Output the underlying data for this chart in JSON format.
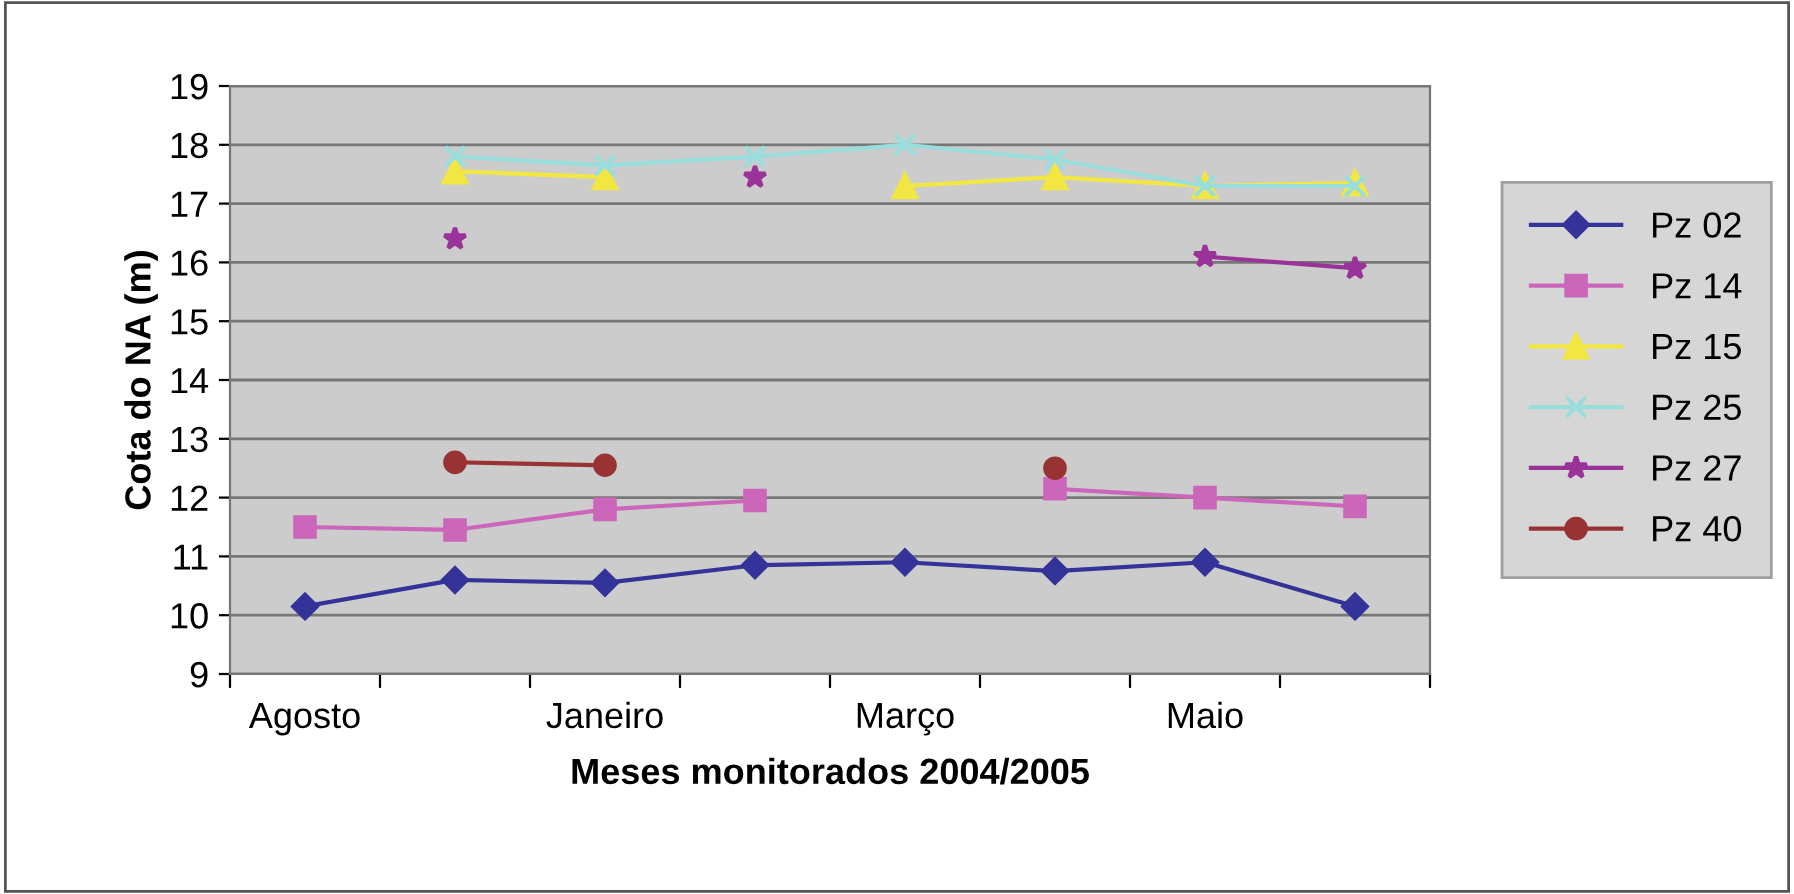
{
  "chart_data": {
    "type": "line",
    "xlabel": "Meses monitorados 2004/2005",
    "ylabel": "Cota do NA (m)",
    "categories": [
      "Agosto",
      null,
      "Janeiro",
      null,
      "Março",
      null,
      "Maio",
      null
    ],
    "series": [
      {
        "name": "Pz 02",
        "color": "#333399",
        "marker": "diamond",
        "values": [
          10.15,
          10.6,
          10.55,
          10.85,
          10.9,
          10.75,
          10.9,
          10.15
        ]
      },
      {
        "name": "Pz 14",
        "color": "#cc66bb",
        "marker": "square",
        "values": [
          11.5,
          11.45,
          11.8,
          11.95,
          null,
          12.15,
          12.0,
          11.85
        ]
      },
      {
        "name": "Pz 15",
        "color": "#f2e642",
        "marker": "triangle",
        "values": [
          null,
          17.55,
          17.45,
          null,
          17.3,
          17.45,
          17.3,
          17.35
        ]
      },
      {
        "name": "Pz 25",
        "color": "#99dddd",
        "marker": "cross",
        "values": [
          null,
          17.8,
          17.65,
          17.8,
          18.0,
          17.75,
          17.3,
          17.3
        ]
      },
      {
        "name": "Pz 27",
        "color": "#993399",
        "marker": "star",
        "values": [
          null,
          16.4,
          null,
          17.45,
          null,
          null,
          16.1,
          15.9
        ]
      },
      {
        "name": "Pz 40",
        "color": "#993333",
        "marker": "circle",
        "values": [
          null,
          12.6,
          12.55,
          null,
          null,
          12.5,
          null,
          null
        ]
      }
    ],
    "ylim": [
      9,
      19
    ],
    "yticks": [
      9,
      10,
      11,
      12,
      13,
      14,
      15,
      16,
      17,
      18,
      19
    ],
    "grid": "y",
    "legend": "right",
    "line_style": "solid"
  }
}
